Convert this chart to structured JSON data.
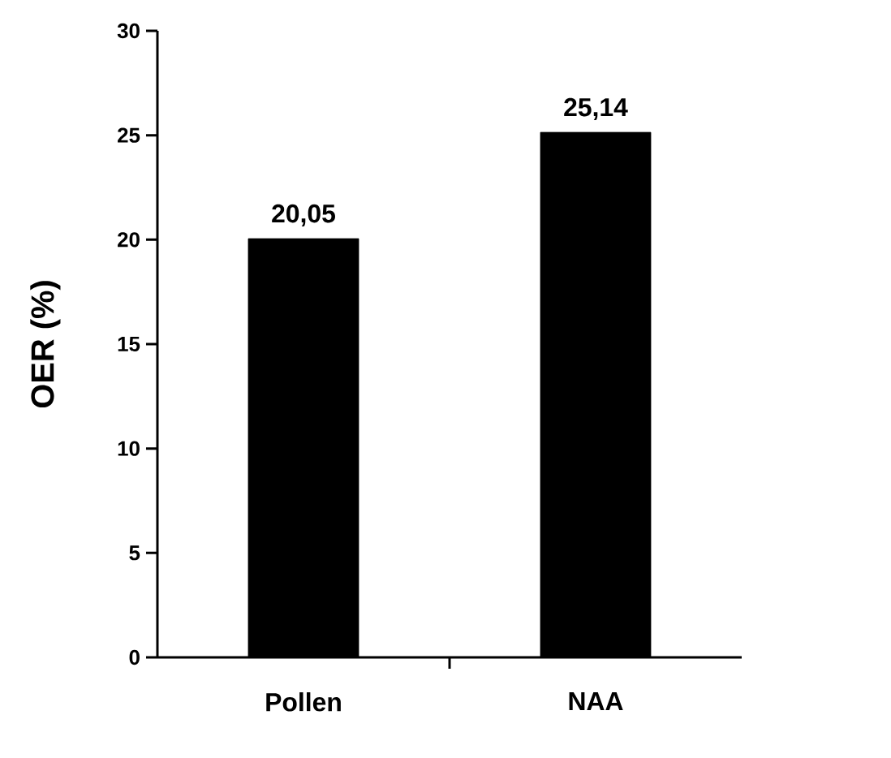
{
  "chart_data": {
    "type": "bar",
    "ylabel": "OER (%)",
    "categories": [
      "Pollen",
      "NAA"
    ],
    "values": [
      20.05,
      25.14
    ],
    "value_labels": [
      "20,05",
      "25,14"
    ],
    "color": "#000000",
    "ylim": [
      0,
      30
    ],
    "yticks": [
      0,
      5,
      10,
      15,
      20,
      25,
      30
    ],
    "grid": false
  }
}
